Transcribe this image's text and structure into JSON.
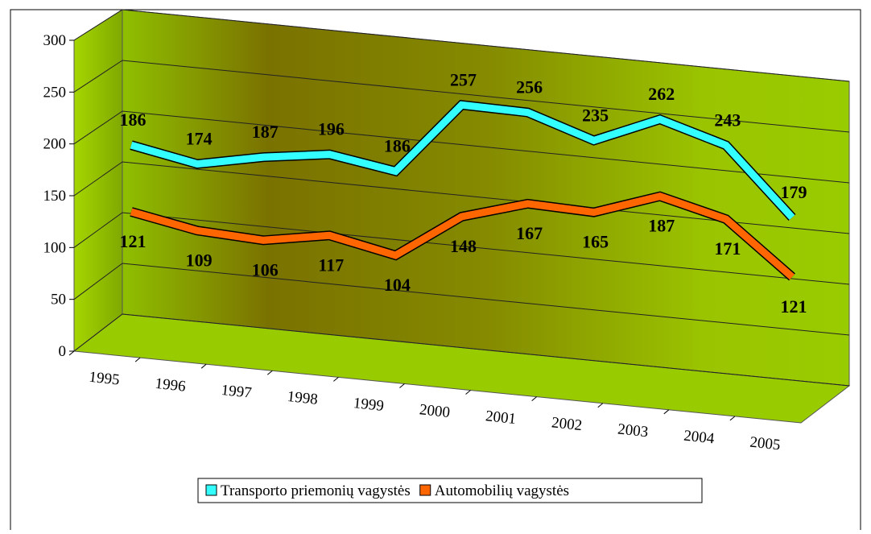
{
  "chart_data": {
    "type": "line3d",
    "categories": [
      "1995",
      "1996",
      "1997",
      "1998",
      "1999",
      "2000",
      "2001",
      "2002",
      "2003",
      "2004",
      "2005"
    ],
    "series": [
      {
        "name": "Transporto priemonių vagystės",
        "color": "#33ffff",
        "values": [
          186,
          174,
          187,
          196,
          186,
          257,
          256,
          235,
          262,
          243,
          179
        ]
      },
      {
        "name": "Automobilių vagystės",
        "color": "#ff6600",
        "values": [
          121,
          109,
          106,
          117,
          104,
          148,
          167,
          165,
          187,
          171,
          121
        ]
      }
    ],
    "ylim": [
      0,
      300
    ],
    "yticks": [
      0,
      50,
      100,
      150,
      200,
      250,
      300
    ],
    "grid": true,
    "legend": "bottom"
  }
}
